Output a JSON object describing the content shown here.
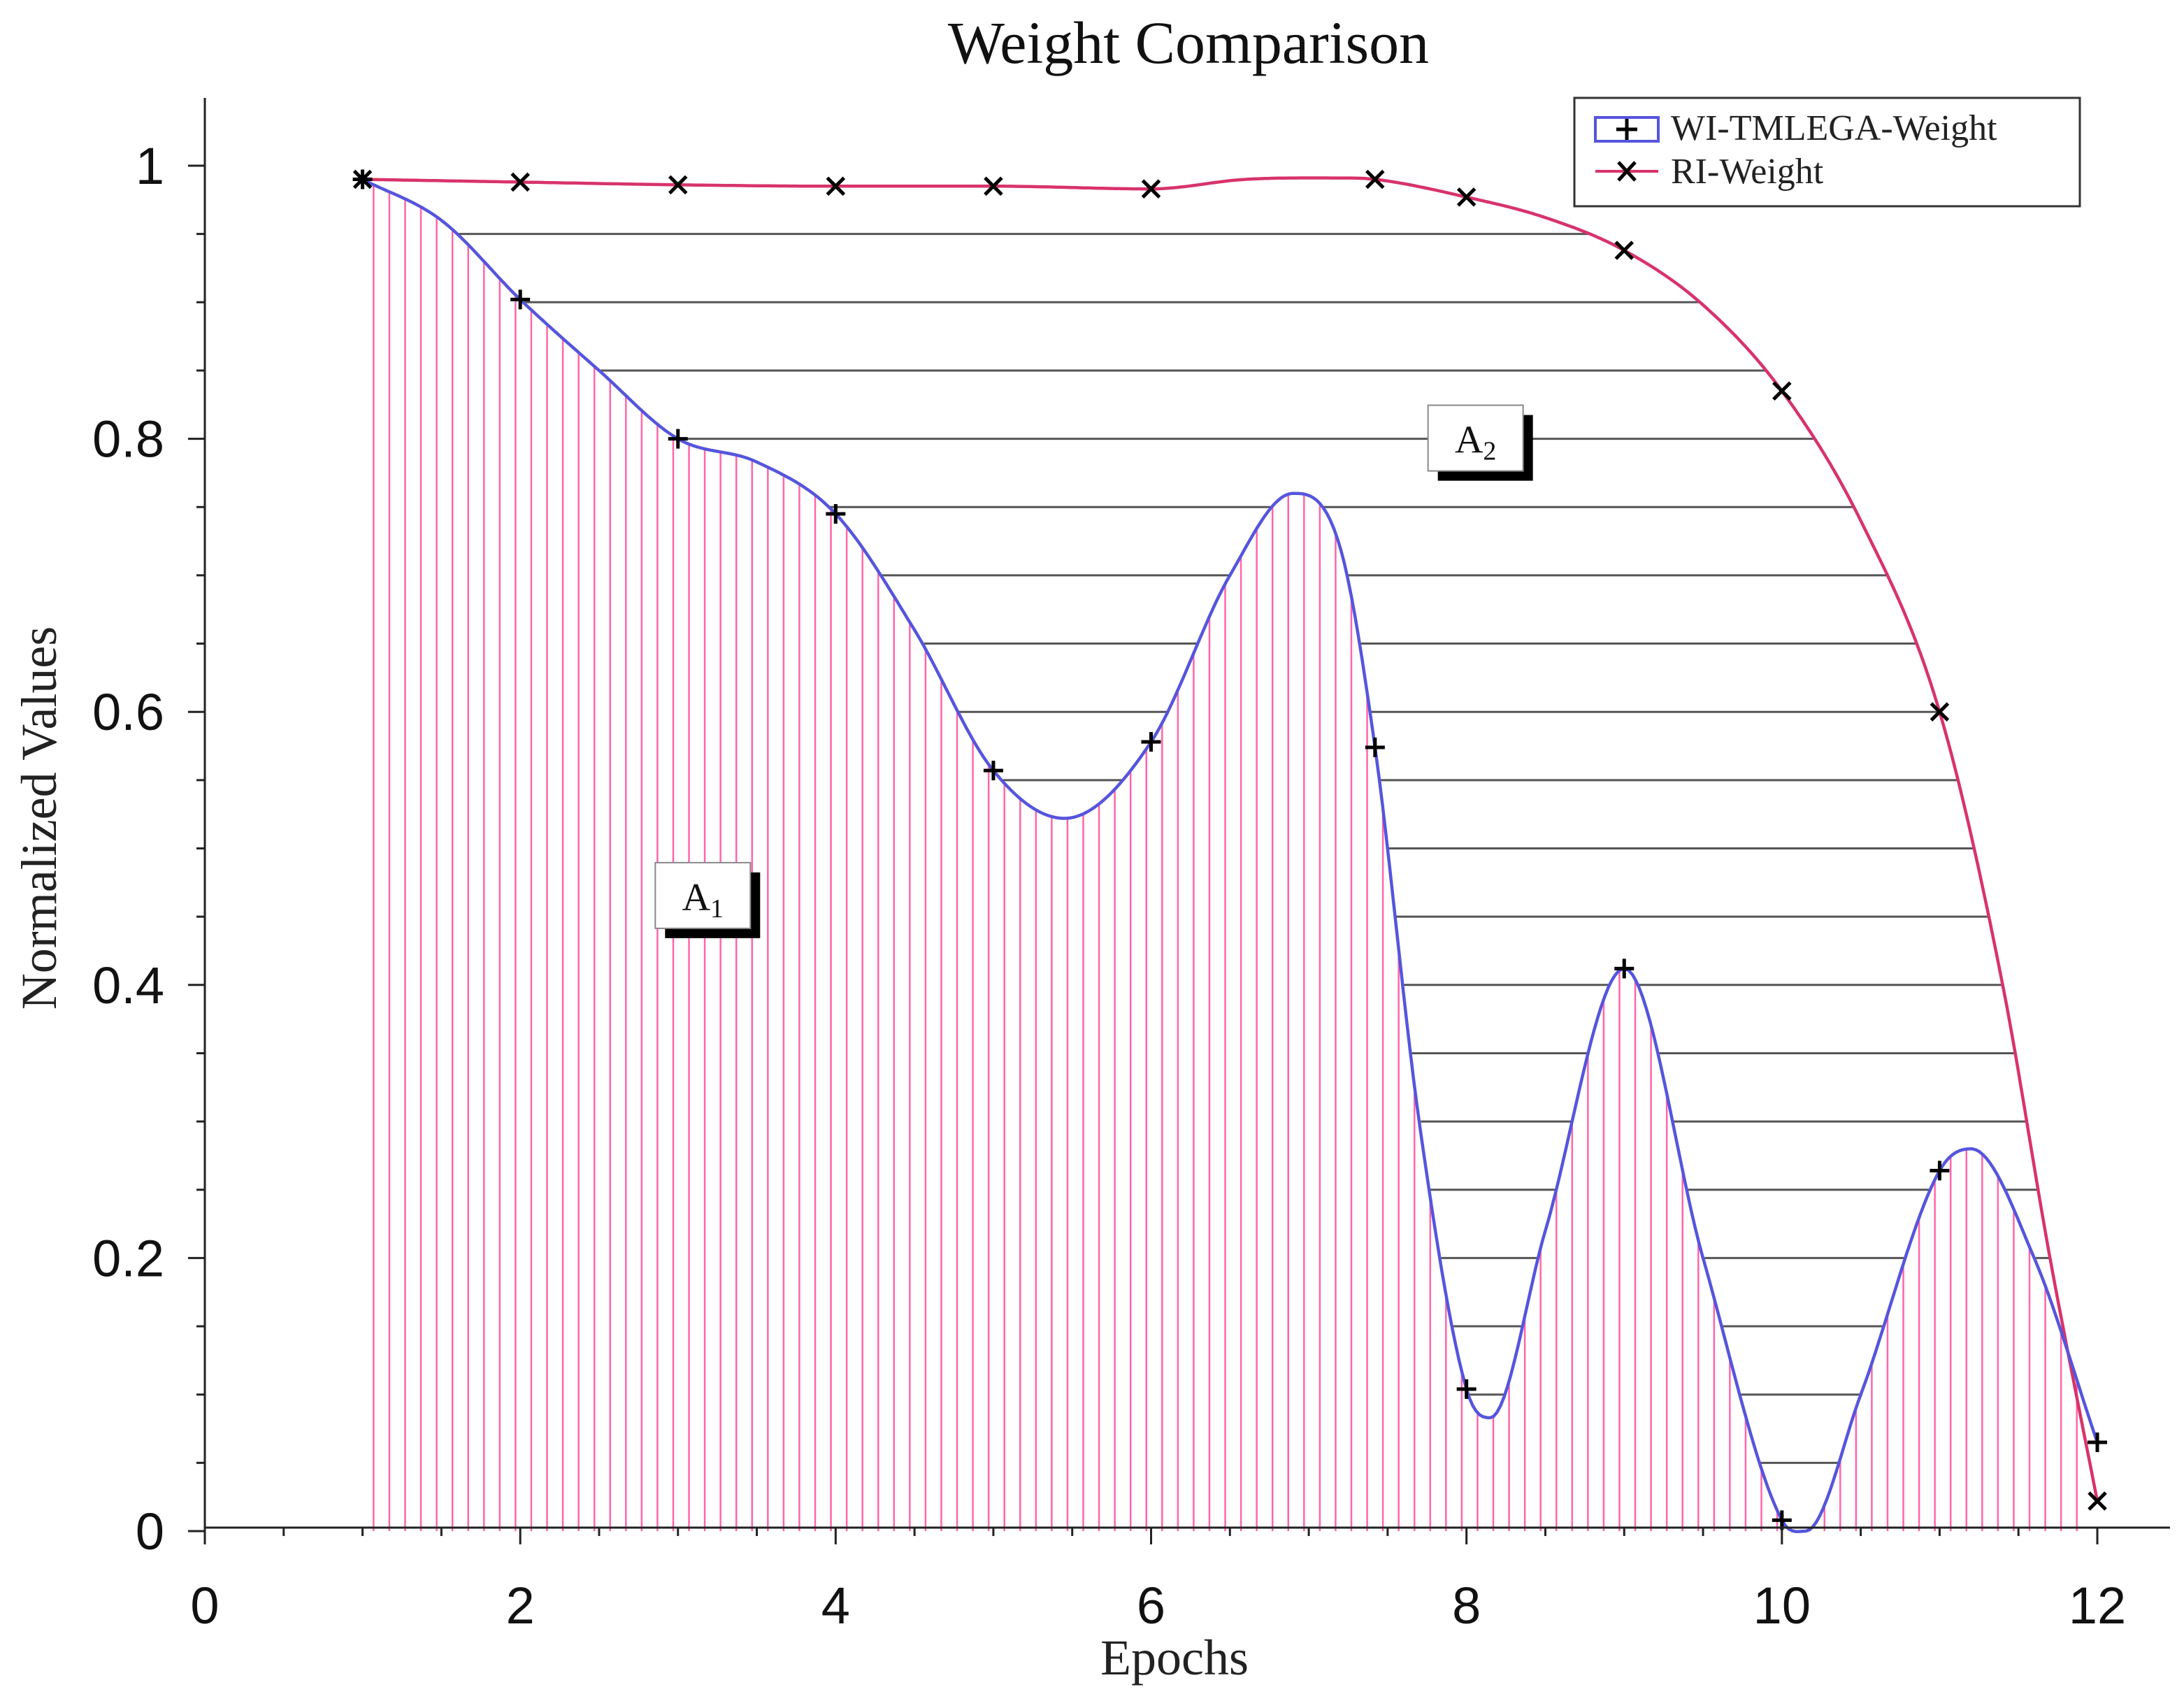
{
  "chart_data": {
    "type": "line",
    "title": "Weight Comparison",
    "xlabel": "Epochs",
    "ylabel": "Normalized Values",
    "xlim": [
      0,
      12.4
    ],
    "ylim": [
      0,
      1.05
    ],
    "xticks": [
      0,
      2,
      4,
      6,
      8,
      10,
      12
    ],
    "yticks": [
      0,
      0.2,
      0.4,
      0.6,
      0.8,
      1
    ],
    "ytick_labels": [
      "0",
      "0.2",
      "0.4",
      "0.6",
      "0.8",
      "1"
    ],
    "legend_position": "top-right",
    "series": [
      {
        "name": "WI-TMLEGA-Weight",
        "marker": "+",
        "color": "#5555dd",
        "x": [
          1,
          2,
          3,
          4,
          5,
          6,
          7.42,
          8,
          9,
          10,
          11,
          12
        ],
        "values": [
          0.99,
          0.902,
          0.8,
          0.745,
          0.557,
          0.578,
          0.574,
          0.104,
          0.412,
          0.008,
          0.264,
          0.065
        ],
        "curve_x": [
          1,
          1.5,
          2,
          2.5,
          3,
          3.5,
          4,
          4.5,
          5,
          5.45,
          6,
          6.5,
          6.9,
          7.2,
          7.42,
          7.7,
          8,
          8.15,
          8.5,
          9,
          9.5,
          10,
          10.15,
          10.5,
          11,
          11.2,
          11.6,
          12
        ],
        "curve_y": [
          0.99,
          0.96,
          0.902,
          0.85,
          0.8,
          0.783,
          0.745,
          0.66,
          0.557,
          0.522,
          0.578,
          0.7,
          0.76,
          0.72,
          0.574,
          0.3,
          0.104,
          0.083,
          0.22,
          0.412,
          0.2,
          0.008,
          0.0,
          0.1,
          0.264,
          0.28,
          0.2,
          0.065
        ]
      },
      {
        "name": "RI-Weight",
        "marker": "x",
        "color": "#d8336a",
        "x": [
          1,
          2,
          3,
          4,
          5,
          6,
          7.42,
          8,
          9,
          10,
          11,
          12
        ],
        "values": [
          0.99,
          0.988,
          0.986,
          0.985,
          0.985,
          0.983,
          0.99,
          0.977,
          0.938,
          0.835,
          0.6,
          0.022
        ],
        "curve_x": [
          1,
          2,
          3,
          4,
          5,
          6,
          6.6,
          7.2,
          7.42,
          8,
          8.5,
          9,
          9.5,
          10,
          10.5,
          11,
          11.4,
          11.7,
          12
        ],
        "curve_y": [
          0.99,
          0.988,
          0.986,
          0.985,
          0.985,
          0.983,
          0.99,
          0.991,
          0.99,
          0.977,
          0.962,
          0.938,
          0.898,
          0.835,
          0.74,
          0.6,
          0.4,
          0.2,
          0.022
        ]
      }
    ],
    "annotations": [
      {
        "base": "A",
        "sub": "1",
        "x": 3.1,
        "y": 0.465,
        "region": "area under WI-TMLEGA-Weight",
        "fill_color": "#ff66aa"
      },
      {
        "base": "A",
        "sub": "2",
        "x": 8.0,
        "y": 0.8,
        "region": "area between curves",
        "fill_color": "#555555"
      }
    ]
  }
}
